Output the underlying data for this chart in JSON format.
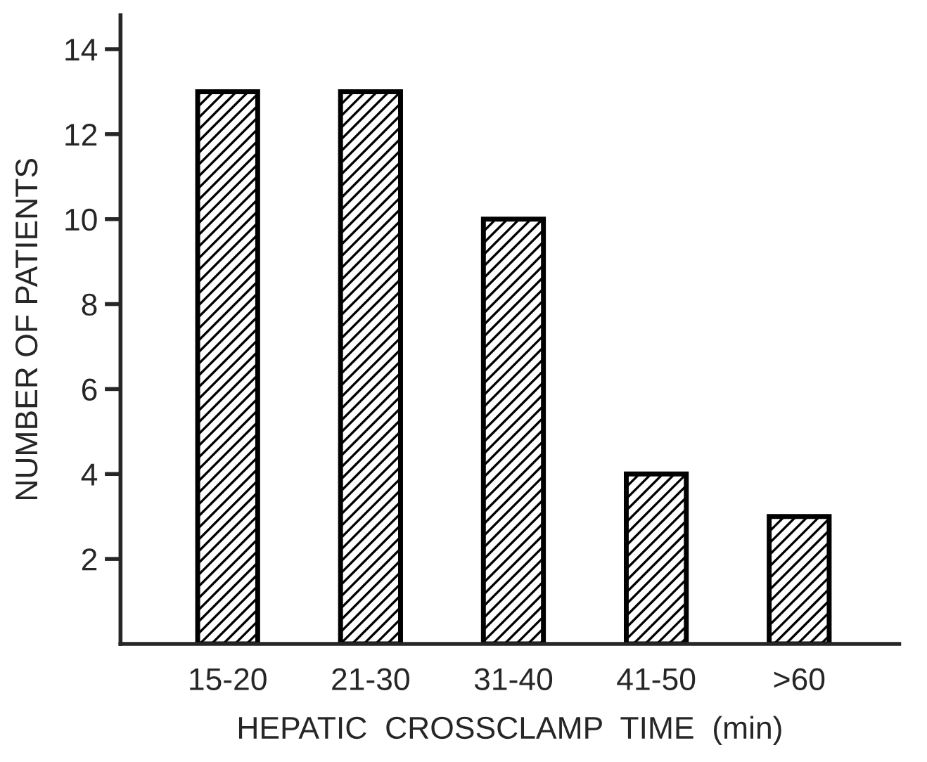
{
  "chart_data": {
    "type": "bar",
    "xlabel": "HEPATIC  CROSSCLAMP  TIME  (min)",
    "ylabel": "NUMBER OF PATIENTS",
    "categories": [
      "15-20",
      "21-30",
      "31-40",
      "41-50",
      ">60"
    ],
    "values": [
      13,
      13,
      10,
      4,
      3
    ],
    "color": "#000000",
    "ylim": [
      0,
      14.8
    ],
    "yticks": [
      2,
      4,
      6,
      8,
      10,
      12,
      14
    ],
    "grid": false
  }
}
